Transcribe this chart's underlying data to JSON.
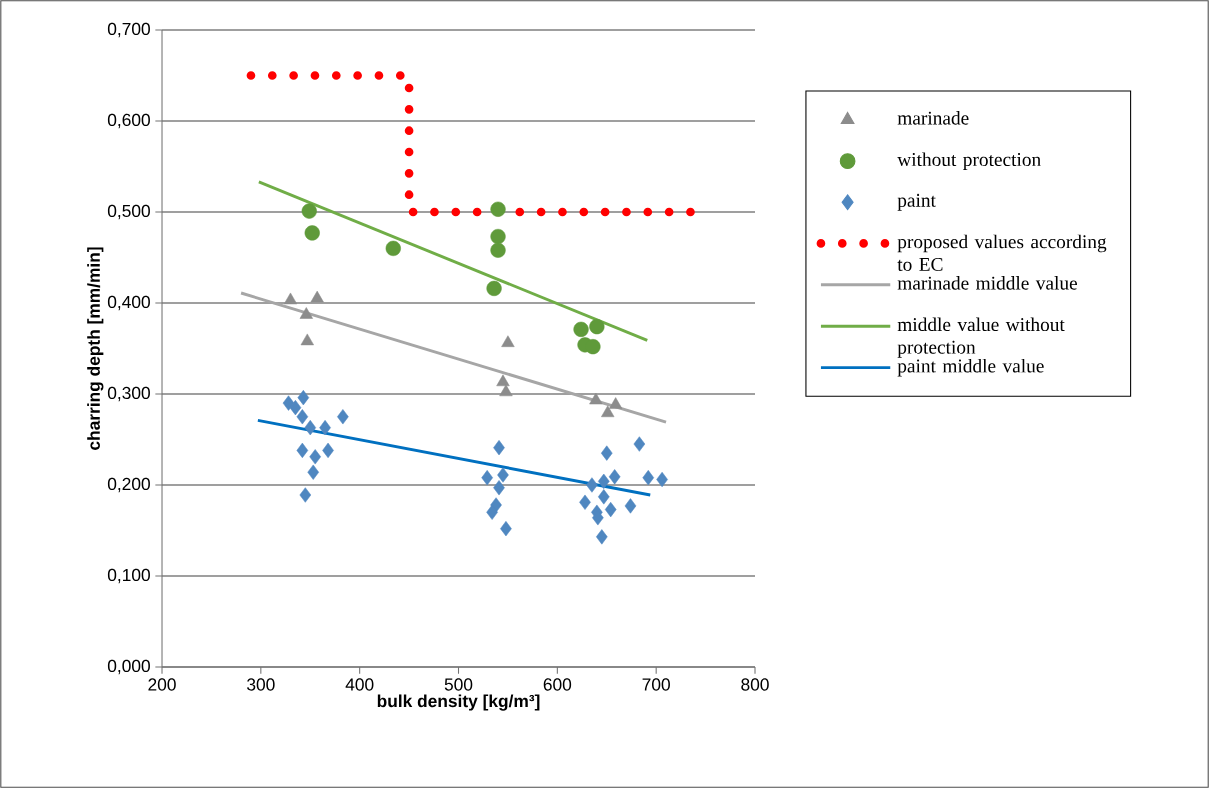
{
  "chart_data": {
    "type": "scatter",
    "xlabel": "bulk density [kg/m³]",
    "ylabel": "charring depth [mm/min]",
    "xlim": [
      200,
      800
    ],
    "xticks": [
      200,
      300,
      400,
      500,
      600,
      700,
      800
    ],
    "ylim": [
      0,
      0.7
    ],
    "yticks": [
      {
        "value": 0,
        "label": "0,000"
      },
      {
        "value": 0.1,
        "label": "0,100"
      },
      {
        "value": 0.2,
        "label": "0,200"
      },
      {
        "value": 0.3,
        "label": "0,300"
      },
      {
        "value": 0.4,
        "label": "0,400"
      },
      {
        "value": 0.5,
        "label": "0,500"
      },
      {
        "value": 0.6,
        "label": "0,600"
      },
      {
        "value": 0.7,
        "label": "0,700"
      }
    ],
    "grid": "y",
    "legend": "right",
    "series": [
      {
        "name": "marinade",
        "marker": "triangle",
        "color": "#8c8c8c",
        "x": [
          330,
          357,
          346,
          347,
          550,
          545,
          548,
          639,
          659,
          651
        ],
        "values": [
          0.403,
          0.405,
          0.387,
          0.358,
          0.356,
          0.313,
          0.302,
          0.293,
          0.288,
          0.279
        ]
      },
      {
        "name": "without protection",
        "marker": "circle",
        "color": "#5f9a3a",
        "x": [
          349,
          352,
          434,
          540,
          540,
          540,
          536,
          624,
          640,
          628,
          636
        ],
        "values": [
          0.501,
          0.477,
          0.46,
          0.503,
          0.473,
          0.458,
          0.416,
          0.371,
          0.374,
          0.354,
          0.352
        ]
      },
      {
        "name": "paint",
        "marker": "diamond",
        "color": "#4f87c0",
        "x": [
          328,
          343,
          335,
          342,
          383,
          350,
          365,
          342,
          368,
          355,
          353,
          345,
          541,
          529,
          545,
          541,
          538,
          534,
          548,
          683,
          650,
          658,
          647,
          635,
          692,
          706,
          628,
          647,
          640,
          654,
          674,
          641,
          645
        ],
        "values": [
          0.29,
          0.296,
          0.285,
          0.275,
          0.275,
          0.263,
          0.263,
          0.238,
          0.238,
          0.231,
          0.214,
          0.189,
          0.241,
          0.208,
          0.211,
          0.197,
          0.178,
          0.17,
          0.152,
          0.245,
          0.235,
          0.209,
          0.204,
          0.2,
          0.208,
          0.206,
          0.181,
          0.187,
          0.17,
          0.173,
          0.177,
          0.164,
          0.143
        ]
      },
      {
        "name": "proposed values according to EC",
        "type": "line",
        "line_style": "dotted",
        "color": "#ff0000",
        "x": [
          290,
          450,
          450,
          735
        ],
        "values": [
          0.65,
          0.65,
          0.5,
          0.5
        ]
      },
      {
        "name": "marinade middle value",
        "type": "line",
        "line_style": "solid",
        "color": "#a6a6a6",
        "x": [
          280,
          710
        ],
        "values": [
          0.411,
          0.269
        ]
      },
      {
        "name": "middle value without protection",
        "type": "line",
        "line_style": "solid",
        "color": "#70ad47",
        "x": [
          298,
          691
        ],
        "values": [
          0.533,
          0.359
        ]
      },
      {
        "name": "paint middle value",
        "type": "line",
        "line_style": "solid",
        "color": "#0070c0",
        "x": [
          297,
          694
        ],
        "values": [
          0.271,
          0.189
        ]
      }
    ]
  }
}
